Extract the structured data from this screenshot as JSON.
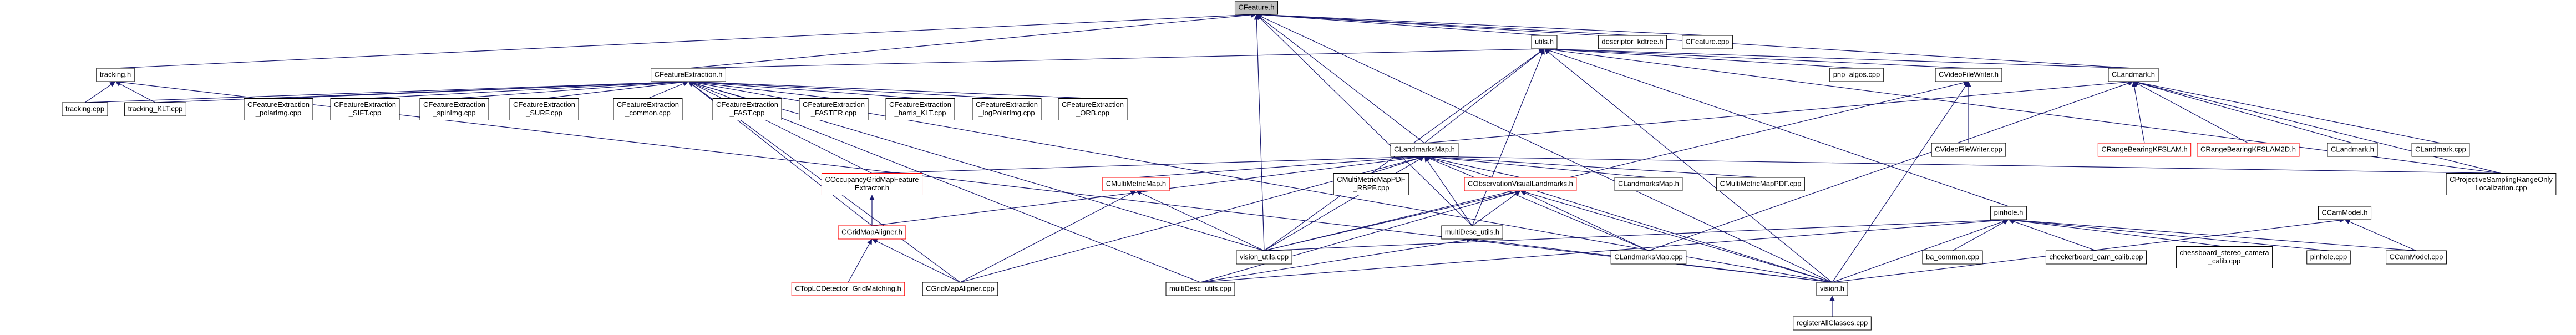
{
  "nodes": [
    {
      "lines": [
        "CFeature.h"
      ]
    },
    {
      "lines": [
        "utils.h"
      ]
    },
    {
      "lines": [
        "descriptor_kdtree.h"
      ]
    },
    {
      "lines": [
        "CFeature.cpp"
      ]
    },
    {
      "lines": [
        "tracking.h"
      ]
    },
    {
      "lines": [
        "CFeatureExtraction.h"
      ]
    },
    {
      "lines": [
        "pnp_algos.cpp"
      ]
    },
    {
      "lines": [
        "CVideoFileWriter.h"
      ]
    },
    {
      "lines": [
        "CLandmark.h"
      ]
    },
    {
      "lines": [
        "tracking.cpp"
      ]
    },
    {
      "lines": [
        "tracking_KLT.cpp"
      ]
    },
    {
      "lines": [
        "CFeatureExtraction",
        "_polarImg.cpp"
      ]
    },
    {
      "lines": [
        "CFeatureExtraction",
        "_SIFT.cpp"
      ]
    },
    {
      "lines": [
        "CFeatureExtraction",
        "_spinImg.cpp"
      ]
    },
    {
      "lines": [
        "CFeatureExtraction",
        "_SURF.cpp"
      ]
    },
    {
      "lines": [
        "CFeatureExtraction",
        "_common.cpp"
      ]
    },
    {
      "lines": [
        "CFeatureExtraction",
        "_FAST.cpp"
      ]
    },
    {
      "lines": [
        "CFeatureExtraction",
        "_FASTER.cpp"
      ]
    },
    {
      "lines": [
        "CFeatureExtraction",
        "_harris_KLT.cpp"
      ]
    },
    {
      "lines": [
        "CFeatureExtraction",
        "_logPolarImg.cpp"
      ]
    },
    {
      "lines": [
        "CFeatureExtraction",
        "_ORB.cpp"
      ]
    },
    {
      "lines": [
        "CLandmarksMap.h"
      ]
    },
    {
      "lines": [
        "CVideoFileWriter.cpp"
      ]
    },
    {
      "lines": [
        "CRangeBearingKFSLAM.h"
      ]
    },
    {
      "lines": [
        "CRangeBearingKFSLAM2D.h"
      ]
    },
    {
      "lines": [
        "CLandmark.h"
      ]
    },
    {
      "lines": [
        "CLandmark.cpp"
      ]
    },
    {
      "lines": [
        "COccupancyGridMapFeature",
        "Extractor.h"
      ]
    },
    {
      "lines": [
        "CMultiMetricMap.h"
      ]
    },
    {
      "lines": [
        "CMultiMetricMapPDF",
        "_RBPF.cpp"
      ]
    },
    {
      "lines": [
        "CObservationVisualLandmarks.h"
      ]
    },
    {
      "lines": [
        "CLandmarksMap.h"
      ]
    },
    {
      "lines": [
        "CMultiMetricMapPDF.cpp"
      ]
    },
    {
      "lines": [
        "CProjectiveSamplingRangeOnly",
        "Localization.cpp"
      ]
    },
    {
      "lines": [
        "pinhole.h"
      ]
    },
    {
      "lines": [
        "CCamModel.h"
      ]
    },
    {
      "lines": [
        "CGridMapAligner.h"
      ]
    },
    {
      "lines": [
        "vision_utils.cpp"
      ]
    },
    {
      "lines": [
        "multiDesc_utils.h"
      ]
    },
    {
      "lines": [
        "CLandmarksMap.cpp"
      ]
    },
    {
      "lines": [
        "ba_common.cpp"
      ]
    },
    {
      "lines": [
        "checkerboard_cam_calib.cpp"
      ]
    },
    {
      "lines": [
        "chessboard_stereo_camera",
        "_calib.cpp"
      ]
    },
    {
      "lines": [
        "pinhole.cpp"
      ]
    },
    {
      "lines": [
        "CCamModel.cpp"
      ]
    },
    {
      "lines": [
        "CTopLCDetector_GridMatching.h"
      ]
    },
    {
      "lines": [
        "CGridMapAligner.cpp"
      ]
    },
    {
      "lines": [
        "multiDesc_utils.cpp"
      ]
    },
    {
      "lines": [
        "vision.h"
      ]
    },
    {
      "lines": [
        "registerAllClasses.cpp"
      ]
    }
  ]
}
